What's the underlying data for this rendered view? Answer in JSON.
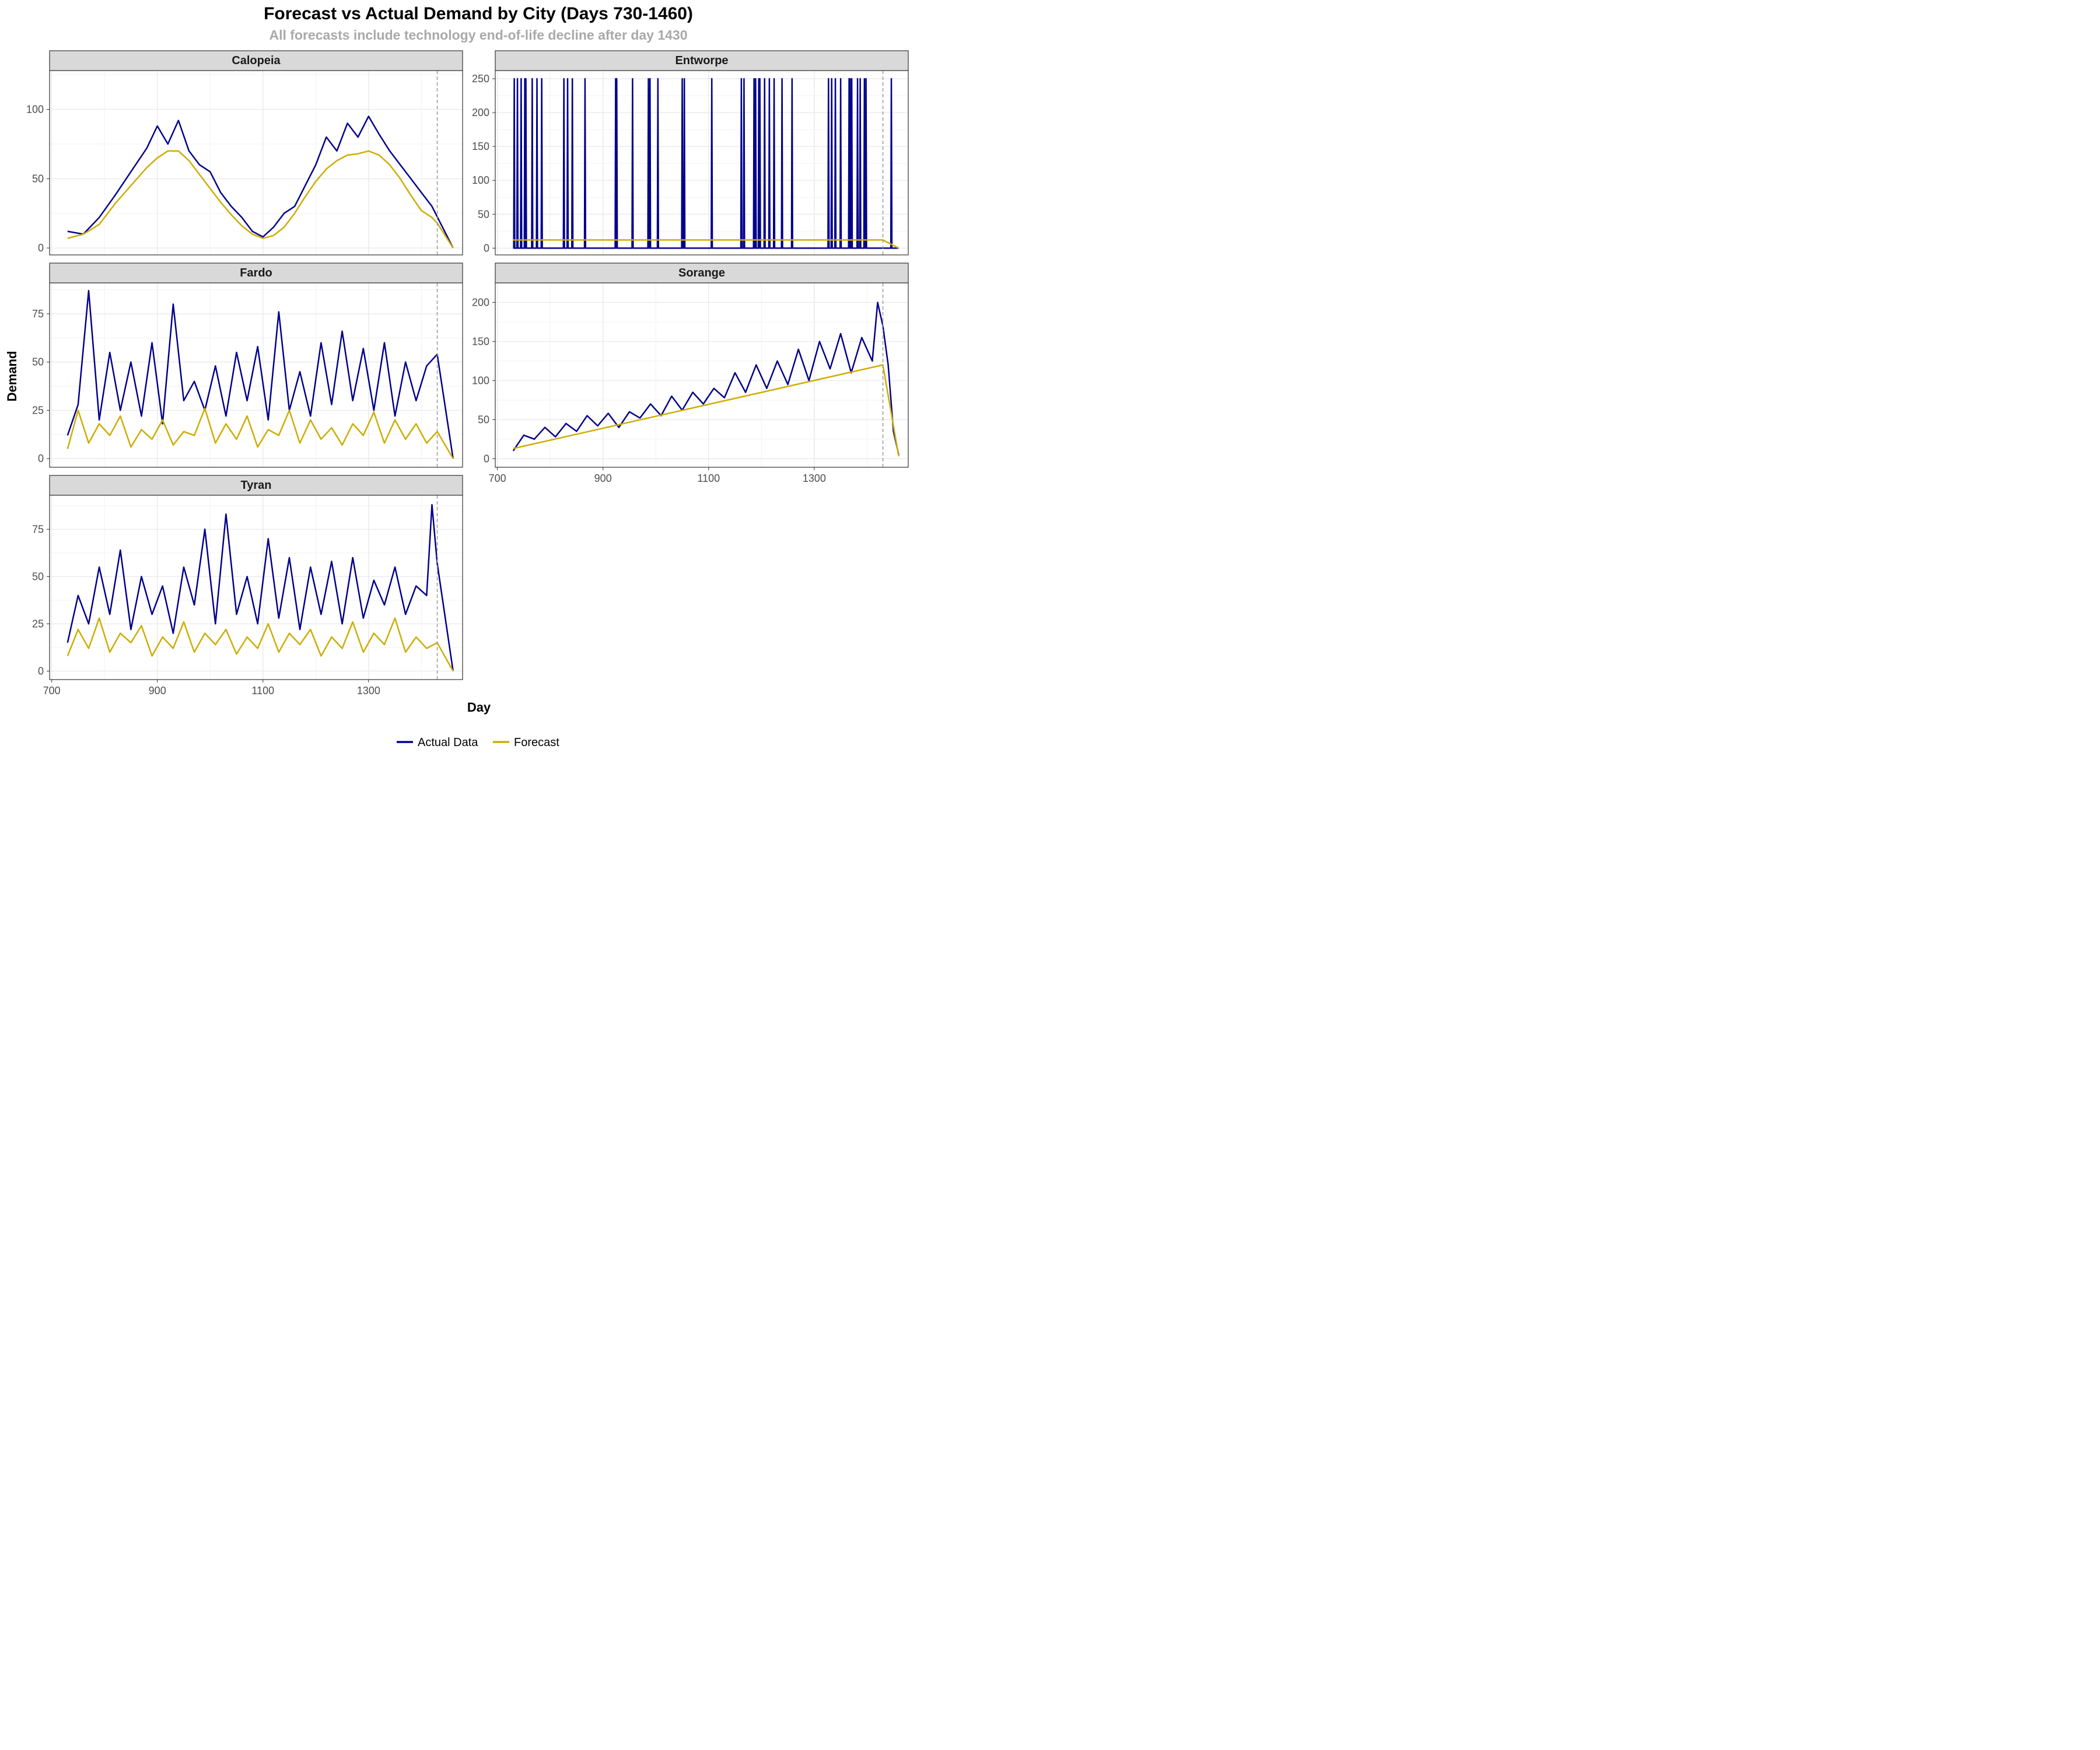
{
  "chart_data": {
    "type": "line",
    "title": "Forecast vs Actual Demand by City (Days 730-1460)",
    "subtitle": "All forecasts include technology end-of-life decline after day 1430",
    "xlabel": "Day",
    "ylabel": "Demand",
    "grid": true,
    "legend_position": "bottom",
    "legend": [
      "Actual Data",
      "Forecast"
    ],
    "colors": {
      "actual": "#00008B",
      "forecast": "#CDAD00",
      "vline": "#999999",
      "strip_bg": "#D9D9D9",
      "grid": "#EBEBEB"
    },
    "x_ticks": [
      700,
      900,
      1100,
      1300
    ],
    "vline_x": 1430,
    "panels": [
      {
        "name": "Calopeia",
        "xlim": [
          696,
          1478
        ],
        "ylim": [
          -5,
          128
        ],
        "y_ticks": [
          0,
          50,
          100
        ],
        "series": [
          {
            "name": "Actual Data",
            "x": [
              730,
              760,
              790,
              820,
              850,
              880,
              900,
              920,
              940,
              960,
              980,
              1000,
              1020,
              1040,
              1060,
              1080,
              1100,
              1120,
              1140,
              1160,
              1180,
              1200,
              1220,
              1240,
              1260,
              1280,
              1300,
              1320,
              1340,
              1360,
              1380,
              1400,
              1420,
              1440,
              1460
            ],
            "y": [
              12,
              10,
              22,
              38,
              55,
              72,
              88,
              75,
              92,
              70,
              60,
              55,
              40,
              30,
              22,
              12,
              8,
              15,
              25,
              30,
              45,
              60,
              80,
              70,
              90,
              80,
              95,
              82,
              70,
              60,
              50,
              40,
              30,
              15,
              0
            ]
          },
          {
            "name": "Forecast",
            "x": [
              730,
              760,
              790,
              820,
              850,
              880,
              900,
              920,
              940,
              960,
              980,
              1000,
              1020,
              1040,
              1060,
              1080,
              1100,
              1120,
              1140,
              1160,
              1180,
              1200,
              1220,
              1240,
              1260,
              1280,
              1300,
              1320,
              1340,
              1360,
              1380,
              1400,
              1420,
              1430,
              1460
            ],
            "y": [
              7,
              10,
              17,
              32,
              45,
              58,
              65,
              70,
              70,
              63,
              53,
              43,
              33,
              24,
              16,
              10,
              7,
              9,
              15,
              25,
              37,
              48,
              57,
              63,
              67,
              68,
              70,
              67,
              60,
              50,
              38,
              27,
              22,
              18,
              0
            ]
          }
        ]
      },
      {
        "name": "Entworpe",
        "xlim": [
          696,
          1478
        ],
        "ylim": [
          -10,
          262
        ],
        "y_ticks": [
          0,
          50,
          100,
          150,
          200,
          250
        ],
        "spikes": [
          732,
          738,
          745,
          752,
          754,
          766,
          775,
          784,
          826,
          833,
          842,
          866,
          924,
          926,
          956,
          986,
          989,
          1004,
          1050,
          1054,
          1106,
          1162,
          1167,
          1186,
          1189,
          1195,
          1197,
          1206,
          1215,
          1224,
          1239,
          1258,
          1327,
          1333,
          1340,
          1350,
          1366,
          1368,
          1371,
          1382,
          1387,
          1395,
          1398,
          1446
        ],
        "spike_value": 250,
        "series": [
          {
            "name": "Forecast",
            "x": [
              730,
              1430,
              1460
            ],
            "y": [
              12,
              12,
              0
            ]
          }
        ]
      },
      {
        "name": "Fardo",
        "xlim": [
          696,
          1478
        ],
        "ylim": [
          -4.5,
          91
        ],
        "y_ticks": [
          0,
          25,
          50,
          75
        ],
        "series": [
          {
            "name": "Actual Data",
            "x": [
              730,
              750,
              770,
              790,
              810,
              830,
              850,
              870,
              890,
              910,
              930,
              950,
              970,
              990,
              1010,
              1030,
              1050,
              1070,
              1090,
              1110,
              1130,
              1150,
              1170,
              1190,
              1210,
              1230,
              1250,
              1270,
              1290,
              1310,
              1330,
              1350,
              1370,
              1390,
              1410,
              1430,
              1460
            ],
            "y": [
              12,
              28,
              87,
              20,
              55,
              25,
              50,
              22,
              60,
              18,
              80,
              30,
              40,
              25,
              48,
              22,
              55,
              30,
              58,
              20,
              76,
              25,
              45,
              22,
              60,
              28,
              66,
              30,
              57,
              25,
              60,
              22,
              50,
              30,
              48,
              54,
              0
            ]
          },
          {
            "name": "Forecast",
            "x": [
              730,
              750,
              770,
              790,
              810,
              830,
              850,
              870,
              890,
              910,
              930,
              950,
              970,
              990,
              1010,
              1030,
              1050,
              1070,
              1090,
              1110,
              1130,
              1150,
              1170,
              1190,
              1210,
              1230,
              1250,
              1270,
              1290,
              1310,
              1330,
              1350,
              1370,
              1390,
              1410,
              1430,
              1460
            ],
            "y": [
              5,
              25,
              8,
              18,
              12,
              22,
              6,
              15,
              10,
              20,
              7,
              14,
              12,
              26,
              8,
              18,
              10,
              22,
              6,
              15,
              12,
              25,
              8,
              20,
              10,
              16,
              7,
              18,
              12,
              24,
              8,
              20,
              10,
              18,
              8,
              14,
              0
            ]
          }
        ]
      },
      {
        "name": "Sorange",
        "xlim": [
          696,
          1478
        ],
        "ylim": [
          -11,
          225
        ],
        "y_ticks": [
          0,
          50,
          100,
          150,
          200
        ],
        "series": [
          {
            "name": "Actual Data",
            "x": [
              730,
              750,
              770,
              790,
              810,
              830,
              850,
              870,
              890,
              910,
              930,
              950,
              970,
              990,
              1010,
              1030,
              1050,
              1070,
              1090,
              1110,
              1130,
              1150,
              1170,
              1190,
              1210,
              1230,
              1250,
              1270,
              1290,
              1310,
              1330,
              1350,
              1370,
              1390,
              1410,
              1420,
              1430,
              1440,
              1450,
              1460
            ],
            "y": [
              10,
              30,
              25,
              40,
              28,
              45,
              35,
              55,
              42,
              58,
              40,
              60,
              52,
              70,
              55,
              80,
              62,
              85,
              70,
              90,
              78,
              110,
              85,
              120,
              90,
              125,
              95,
              140,
              100,
              150,
              115,
              160,
              110,
              155,
              125,
              200,
              170,
              120,
              35,
              5
            ]
          },
          {
            "name": "Forecast",
            "x": [
              730,
              1430,
              1460
            ],
            "y": [
              13,
              120,
              3
            ]
          }
        ]
      },
      {
        "name": "Tyran",
        "xlim": [
          696,
          1478
        ],
        "ylim": [
          -4.5,
          93
        ],
        "y_ticks": [
          0,
          25,
          50,
          75
        ],
        "series": [
          {
            "name": "Actual Data",
            "x": [
              730,
              750,
              770,
              790,
              810,
              830,
              850,
              870,
              890,
              910,
              930,
              950,
              970,
              990,
              1010,
              1030,
              1050,
              1070,
              1090,
              1110,
              1130,
              1150,
              1170,
              1190,
              1210,
              1230,
              1250,
              1270,
              1290,
              1310,
              1330,
              1350,
              1370,
              1390,
              1410,
              1420,
              1430,
              1460
            ],
            "y": [
              15,
              40,
              25,
              55,
              30,
              64,
              22,
              50,
              30,
              45,
              20,
              55,
              35,
              75,
              25,
              83,
              30,
              50,
              25,
              70,
              28,
              60,
              22,
              55,
              30,
              58,
              25,
              60,
              28,
              48,
              35,
              55,
              30,
              45,
              40,
              88,
              57,
              0
            ]
          },
          {
            "name": "Forecast",
            "x": [
              730,
              750,
              770,
              790,
              810,
              830,
              850,
              870,
              890,
              910,
              930,
              950,
              970,
              990,
              1010,
              1030,
              1050,
              1070,
              1090,
              1110,
              1130,
              1150,
              1170,
              1190,
              1210,
              1230,
              1250,
              1270,
              1290,
              1310,
              1330,
              1350,
              1370,
              1390,
              1410,
              1430,
              1460
            ],
            "y": [
              8,
              22,
              12,
              28,
              10,
              20,
              15,
              24,
              8,
              18,
              12,
              26,
              10,
              20,
              14,
              22,
              9,
              18,
              12,
              25,
              10,
              20,
              14,
              22,
              8,
              18,
              12,
              26,
              10,
              20,
              14,
              28,
              10,
              18,
              12,
              15,
              0
            ]
          }
        ]
      }
    ]
  }
}
